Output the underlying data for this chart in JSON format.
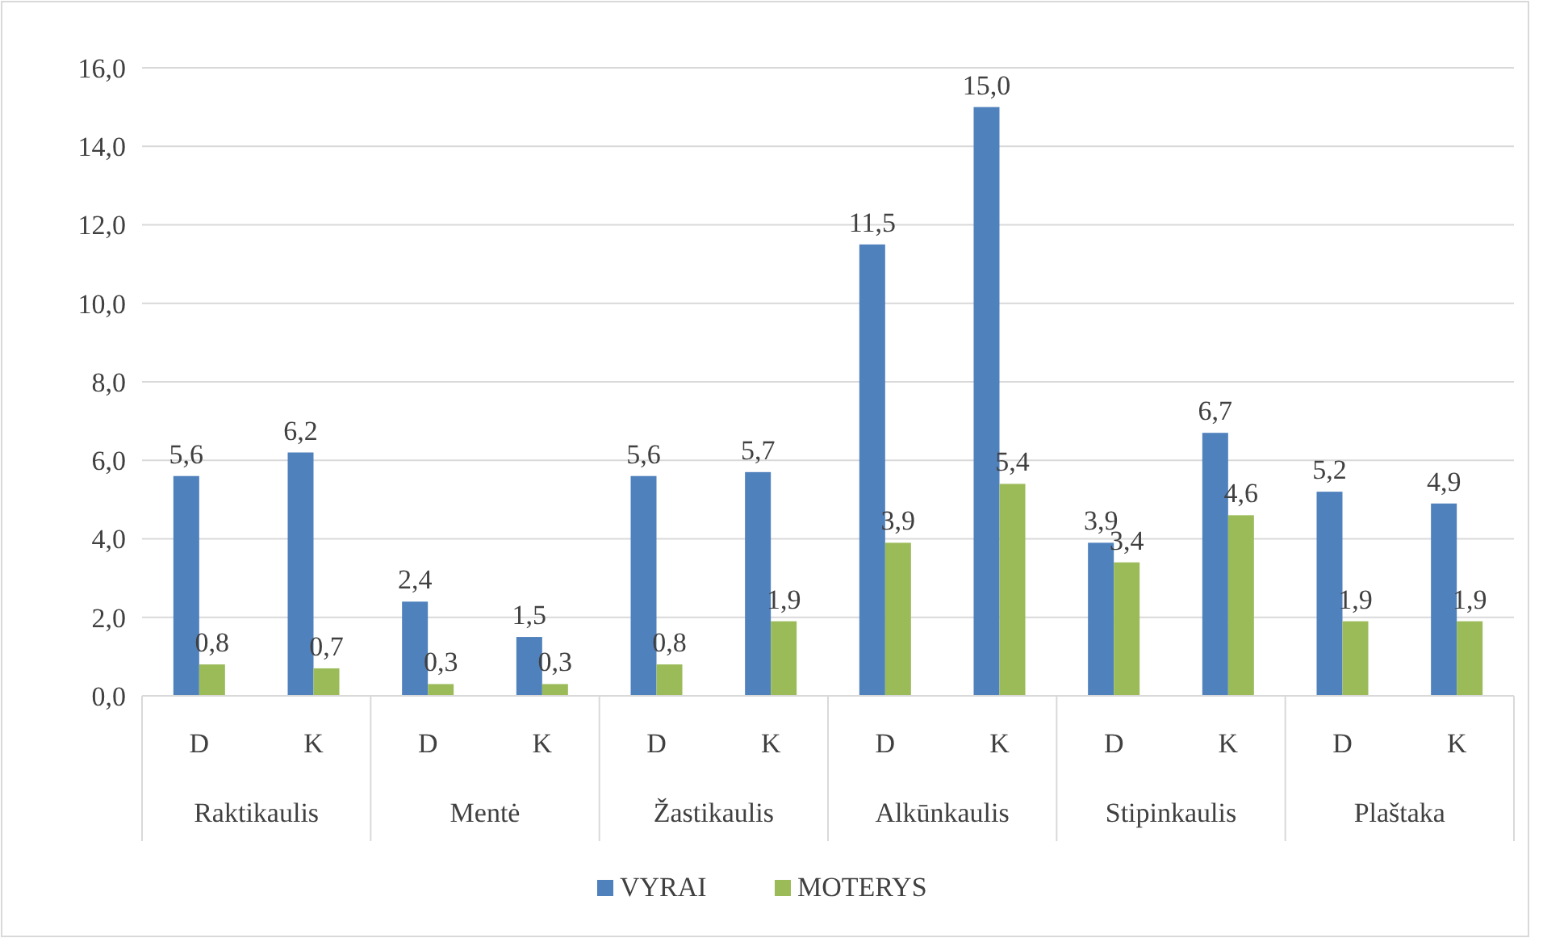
{
  "chart_data": {
    "type": "bar",
    "categories": [
      "D",
      "K",
      "D",
      "K",
      "D",
      "K",
      "D",
      "K",
      "D",
      "K",
      "D",
      "K"
    ],
    "annotations": [
      "Raktikaulis",
      "Mentė",
      "Žastikaulis",
      "Alkūnkaulis",
      "Stipinkaulis",
      "Plaštaka"
    ],
    "series": [
      {
        "name": "VYRAI",
        "color": "#4f81bd",
        "values": [
          5.6,
          6.2,
          2.4,
          1.5,
          5.6,
          5.7,
          11.5,
          15.0,
          3.9,
          6.7,
          5.2,
          4.9
        ],
        "value_labels": [
          "5,6",
          "6,2",
          "2,4",
          "1,5",
          "5,6",
          "5,7",
          "11,5",
          "15,0",
          "3,9",
          "6,7",
          "5,2",
          "4,9"
        ]
      },
      {
        "name": "MOTERYS",
        "color": "#9bbb59",
        "values": [
          0.8,
          0.7,
          0.3,
          0.3,
          0.8,
          1.9,
          3.9,
          5.4,
          3.4,
          4.6,
          1.9,
          1.9
        ],
        "value_labels": [
          "0,8",
          "0,7",
          "0,3",
          "0,3",
          "0,8",
          "1,9",
          "3,9",
          "5,4",
          "3,4",
          "4,6",
          "1,9",
          "1,9"
        ]
      }
    ],
    "ylim": [
      0,
      16
    ],
    "yticks": [
      {
        "value": 0,
        "label": "0,0"
      },
      {
        "value": 2,
        "label": "2,0"
      },
      {
        "value": 4,
        "label": "4,0"
      },
      {
        "value": 6,
        "label": "6,0"
      },
      {
        "value": 8,
        "label": "8,0"
      },
      {
        "value": 10,
        "label": "10,0"
      },
      {
        "value": 12,
        "label": "12,0"
      },
      {
        "value": 14,
        "label": "14,0"
      },
      {
        "value": 16,
        "label": "16,0"
      }
    ],
    "grid": "y",
    "legend": "bottom"
  }
}
